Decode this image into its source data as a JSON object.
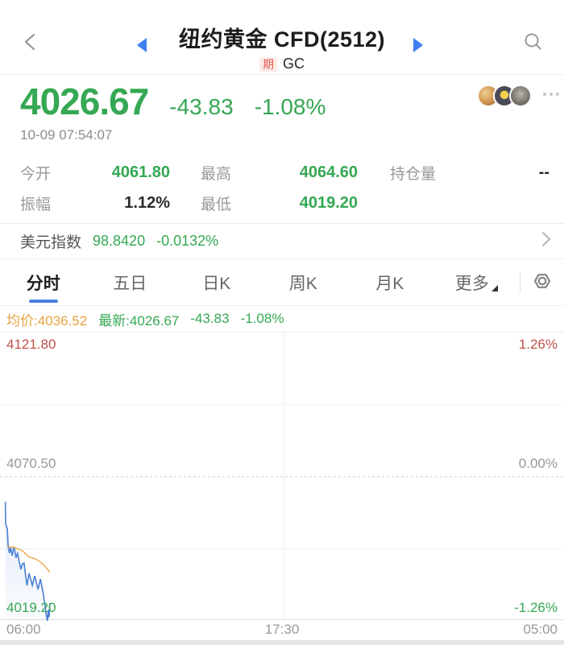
{
  "header": {
    "title": "纽约黄金 CFD(2512)",
    "type_badge": "期",
    "symbol": "GC"
  },
  "quote": {
    "price": "4026.67",
    "change": "-43.83",
    "change_pct": "-1.08%",
    "timestamp": "10-09 07:54:07"
  },
  "stats": {
    "cells": [
      {
        "label": "今开",
        "value": "4061.80",
        "color": "green"
      },
      {
        "label": "最高",
        "value": "4064.60",
        "color": "green"
      },
      {
        "label": "持仓量",
        "value": "--",
        "color": "dark"
      },
      {
        "label": "振幅",
        "value": "1.12%",
        "color": "dark"
      },
      {
        "label": "最低",
        "value": "4019.20",
        "color": "green"
      },
      {
        "label": "",
        "value": "",
        "color": "dark"
      }
    ]
  },
  "usd_index": {
    "label": "美元指数",
    "value": "98.8420",
    "change": "-0.0132%"
  },
  "tabs": [
    {
      "name": "time-share",
      "label": "分时",
      "active": true,
      "has_dropdown": false
    },
    {
      "name": "five-day",
      "label": "五日",
      "active": false,
      "has_dropdown": false
    },
    {
      "name": "daily-k",
      "label": "日K",
      "active": false,
      "has_dropdown": false
    },
    {
      "name": "weekly-k",
      "label": "周K",
      "active": false,
      "has_dropdown": false
    },
    {
      "name": "monthly-k",
      "label": "月K",
      "active": false,
      "has_dropdown": false
    },
    {
      "name": "more",
      "label": "更多",
      "active": false,
      "has_dropdown": true
    }
  ],
  "legend": {
    "avg": "均价:4036.52",
    "last": "最新:4026.67",
    "change": "-43.83",
    "change_pct": "-1.08%"
  },
  "colors": {
    "up_red": "#c0504a",
    "down_green": "#35a853",
    "price_line": "#4a7fd6",
    "avg_line": "#e8a33d",
    "accent_blue": "#3f80ee"
  },
  "chart_data": {
    "type": "line",
    "title": "纽约黄金 CFD(2512) 分时",
    "x_axis": {
      "labels": [
        "06:00",
        "17:30",
        "05:00"
      ],
      "range_minutes": [
        0,
        1380
      ]
    },
    "y_axis": {
      "min": 4019.2,
      "max": 4121.8,
      "prev_close": 4070.5,
      "labels": {
        "top_left": "4121.80",
        "top_right": "1.26%",
        "mid_left": "4070.50",
        "mid_right": "0.00%",
        "bottom_left": "4019.20",
        "bottom_right": "-1.26%"
      }
    },
    "summary": {
      "open": 4061.8,
      "high": 4064.6,
      "low": 4019.2,
      "last": 4026.67,
      "avg": 4036.52,
      "change": -43.83,
      "change_pct": "-1.08%"
    },
    "grid": {
      "vertical_gridline_minutes": 690,
      "mid_dashed": true,
      "quarter_lines": true
    },
    "legend_position": "top-left",
    "series": [
      {
        "name": "price",
        "color": "#4a7fd6",
        "area_fill": true,
        "points": [
          [
            13,
            4061.6
          ],
          [
            14,
            4053.6
          ],
          [
            18,
            4052.0
          ],
          [
            20,
            4045.9
          ],
          [
            23,
            4043.3
          ],
          [
            26,
            4045.3
          ],
          [
            30,
            4042.4
          ],
          [
            34,
            4045.6
          ],
          [
            36,
            4044.4
          ],
          [
            39,
            4041.6
          ],
          [
            43,
            4043.3
          ],
          [
            47,
            4040.4
          ],
          [
            51,
            4037.5
          ],
          [
            55,
            4039.5
          ],
          [
            59,
            4039.8
          ],
          [
            63,
            4034.7
          ],
          [
            66,
            4031.8
          ],
          [
            71,
            4036.1
          ],
          [
            75,
            4034.1
          ],
          [
            79,
            4031.8
          ],
          [
            85,
            4035.2
          ],
          [
            89,
            4032.9
          ],
          [
            93,
            4030.4
          ],
          [
            99,
            4034.1
          ],
          [
            102,
            4031.8
          ],
          [
            106,
            4028.7
          ],
          [
            110,
            4025.0
          ],
          [
            113,
            4021.5
          ],
          [
            116,
            4019.2
          ],
          [
            118,
            4023.0
          ],
          [
            120,
            4020.5
          ],
          [
            122,
            4025.5
          ]
        ]
      },
      {
        "name": "average",
        "color": "#e8a33d",
        "area_fill": false,
        "points": [
          [
            18,
            4045.6
          ],
          [
            34,
            4045.3
          ],
          [
            45,
            4044.7
          ],
          [
            55,
            4044.1
          ],
          [
            61,
            4043.3
          ],
          [
            67,
            4042.4
          ],
          [
            73,
            4041.8
          ],
          [
            79,
            4041.6
          ],
          [
            85,
            4041.3
          ],
          [
            93,
            4040.7
          ],
          [
            99,
            4040.1
          ],
          [
            104,
            4039.5
          ],
          [
            108,
            4039.0
          ],
          [
            113,
            4038.1
          ],
          [
            118,
            4037.2
          ],
          [
            122,
            4036.5
          ]
        ]
      }
    ]
  }
}
